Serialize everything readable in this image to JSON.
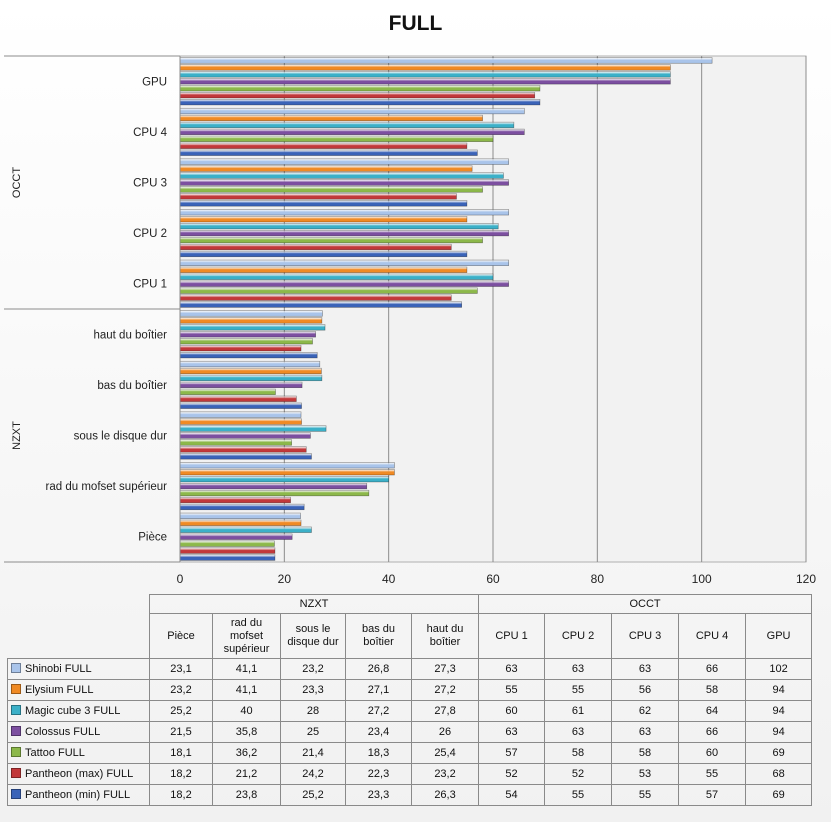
{
  "chart_data": {
    "type": "bar",
    "orientation": "horizontal",
    "title": "FULL",
    "xlim": [
      0,
      120
    ],
    "x_ticks": [
      "0",
      "20",
      "40",
      "60",
      "80",
      "100",
      "120"
    ],
    "grid": true,
    "groups": [
      {
        "name": "OCCT",
        "categories": [
          "CPU 1",
          "CPU 2",
          "CPU 3",
          "CPU 4",
          "GPU"
        ]
      },
      {
        "name": "NZXT",
        "categories": [
          "Pièce",
          "rad du mofset supérieur",
          "sous le disque dur",
          "bas du boîtier",
          "haut du boîtier"
        ]
      }
    ],
    "table_headers": [
      "Pièce",
      "rad du mofset supérieur",
      "sous le disque dur",
      "bas du boîtier",
      "haut du boîtier",
      "CPU 1",
      "CPU 2",
      "CPU 3",
      "CPU 4",
      "GPU"
    ],
    "series": [
      {
        "name": "Shinobi FULL",
        "color": "#a9c4ea",
        "values": [
          23.1,
          41.1,
          23.2,
          26.8,
          27.3,
          63,
          63,
          63,
          66,
          102
        ],
        "labels": [
          "23,1",
          "41,1",
          "23,2",
          "26,8",
          "27,3",
          "63",
          "63",
          "63",
          "66",
          "102"
        ]
      },
      {
        "name": "Elysium FULL",
        "color": "#f08a24",
        "values": [
          23.2,
          41.1,
          23.3,
          27.1,
          27.2,
          55,
          55,
          56,
          58,
          94
        ],
        "labels": [
          "23,2",
          "41,1",
          "23,3",
          "27,1",
          "27,2",
          "55",
          "55",
          "56",
          "58",
          "94"
        ]
      },
      {
        "name": "Magic cube 3 FULL",
        "color": "#3bb0c8",
        "values": [
          25.2,
          40,
          28,
          27.2,
          27.8,
          60,
          61,
          62,
          64,
          94
        ],
        "labels": [
          "25,2",
          "40",
          "28",
          "27,2",
          "27,8",
          "60",
          "61",
          "62",
          "64",
          "94"
        ]
      },
      {
        "name": "Colossus FULL",
        "color": "#7c4fa0",
        "values": [
          21.5,
          35.8,
          25,
          23.4,
          26,
          63,
          63,
          63,
          66,
          94
        ],
        "labels": [
          "21,5",
          "35,8",
          "25",
          "23,4",
          "26",
          "63",
          "63",
          "63",
          "66",
          "94"
        ]
      },
      {
        "name": "Tattoo FULL",
        "color": "#8cb84a",
        "values": [
          18.1,
          36.2,
          21.4,
          18.3,
          25.4,
          57,
          58,
          58,
          60,
          69
        ],
        "labels": [
          "18,1",
          "36,2",
          "21,4",
          "18,3",
          "25,4",
          "57",
          "58",
          "58",
          "60",
          "69"
        ]
      },
      {
        "name": "Pantheon (max) FULL",
        "color": "#c2383a",
        "values": [
          18.2,
          21.2,
          24.2,
          22.3,
          23.2,
          52,
          52,
          53,
          55,
          68
        ],
        "labels": [
          "18,2",
          "21,2",
          "24,2",
          "22,3",
          "23,2",
          "52",
          "52",
          "53",
          "55",
          "68"
        ]
      },
      {
        "name": "Pantheon (min) FULL",
        "color": "#3a63b8",
        "values": [
          18.2,
          23.8,
          25.2,
          23.3,
          26.3,
          54,
          55,
          55,
          57,
          69
        ],
        "labels": [
          "18,2",
          "23,8",
          "25,2",
          "23,3",
          "26,3",
          "54",
          "55",
          "55",
          "57",
          "69"
        ]
      }
    ]
  }
}
